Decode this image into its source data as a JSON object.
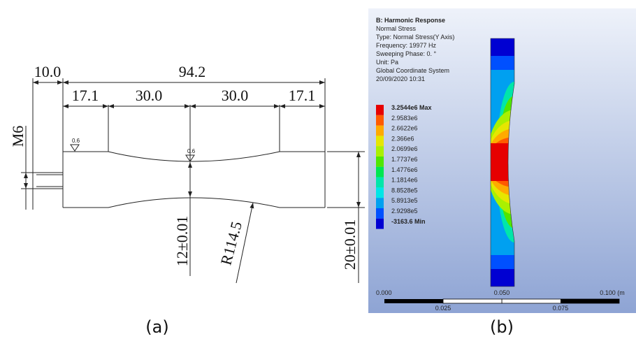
{
  "drawing": {
    "dimensions": {
      "grip_length": "10.0",
      "total_length": "94.2",
      "segments": [
        "17.1",
        "30.0",
        "30.0",
        "17.1"
      ],
      "thread": "M6",
      "neck_width": "12±0.01",
      "radius": "R114.5",
      "width": "20±0.01"
    },
    "roughness": [
      "0.6",
      "0.6"
    ],
    "caption": "(a)"
  },
  "simulation": {
    "title": "B: Harmonic Response",
    "info": [
      "Normal Stress",
      "Type: Normal Stress(Y Axis)",
      "Frequency: 19977 Hz",
      "Sweeping Phase: 0. °",
      "Unit: Pa",
      "Global Coordinate System",
      "20/09/2020 10:31"
    ],
    "legend": [
      {
        "label": "3.2544e6 Max",
        "color": "#e60000"
      },
      {
        "label": "2.9583e6",
        "color": "#ff5a00"
      },
      {
        "label": "2.6622e6",
        "color": "#ffaa00"
      },
      {
        "label": "2.366e6",
        "color": "#e6e600"
      },
      {
        "label": "2.0699e6",
        "color": "#aaf000"
      },
      {
        "label": "1.7737e6",
        "color": "#50e600"
      },
      {
        "label": "1.4776e6",
        "color": "#00e650"
      },
      {
        "label": "1.1814e6",
        "color": "#00e6aa"
      },
      {
        "label": "8.8528e5",
        "color": "#00e6e6"
      },
      {
        "label": "5.8913e5",
        "color": "#00a0f0"
      },
      {
        "label": "2.9298e5",
        "color": "#0050ff"
      },
      {
        "label": "-3163.6 Min",
        "color": "#0000d2"
      }
    ],
    "scale_top": [
      "0.000",
      "0.050",
      "0.100 (m"
    ],
    "scale_bottom": [
      "0.025",
      "0.075"
    ],
    "caption": "(b)"
  }
}
